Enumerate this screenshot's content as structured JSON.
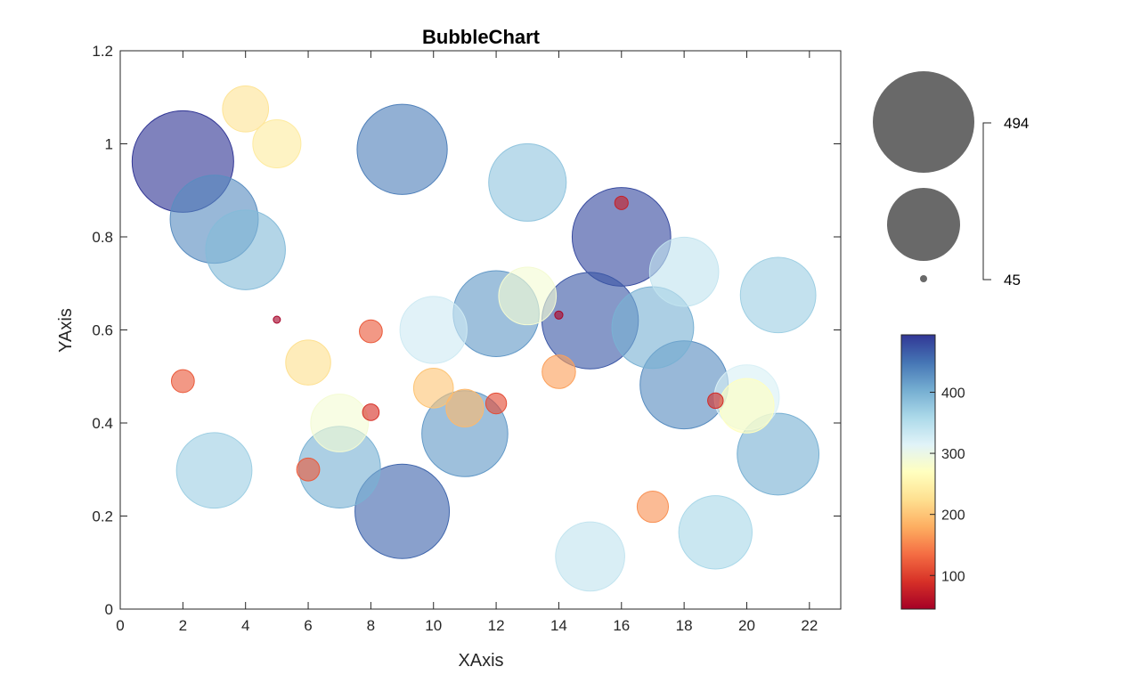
{
  "chart_data": {
    "type": "scatter",
    "title": "BubbleChart",
    "xlabel": "XAxis",
    "ylabel": "YAxis",
    "xlim": [
      0,
      23
    ],
    "ylim": [
      0,
      1.2
    ],
    "xticks": [
      0,
      2,
      4,
      6,
      8,
      10,
      12,
      14,
      16,
      18,
      20,
      22
    ],
    "yticks": [
      0,
      0.2,
      0.4,
      0.6,
      0.8,
      1,
      1.2
    ],
    "ytick_labels": [
      "0",
      "0.2",
      "0.4",
      "0.6",
      "0.8",
      "1",
      "1.2"
    ],
    "grid": false,
    "size_legend": {
      "max_label": "494",
      "min_label": "45",
      "max": 494,
      "min": 45
    },
    "colorbar": {
      "ticks": [
        100,
        200,
        300,
        400
      ],
      "min": 45,
      "max": 494,
      "colormap": "RdYlBu"
    },
    "points": [
      {
        "x": 2,
        "y": 0.962,
        "v": 494
      },
      {
        "x": 3,
        "y": 0.838,
        "v": 430
      },
      {
        "x": 4,
        "y": 0.772,
        "v": 390
      },
      {
        "x": 4,
        "y": 1.075,
        "v": 230
      },
      {
        "x": 5,
        "y": 1.0,
        "v": 240
      },
      {
        "x": 9,
        "y": 0.988,
        "v": 440
      },
      {
        "x": 13,
        "y": 0.917,
        "v": 380
      },
      {
        "x": 16,
        "y": 0.8,
        "v": 480
      },
      {
        "x": 16,
        "y": 0.873,
        "v": 75
      },
      {
        "x": 18,
        "y": 0.725,
        "v": 340
      },
      {
        "x": 21,
        "y": 0.675,
        "v": 370
      },
      {
        "x": 17,
        "y": 0.605,
        "v": 400
      },
      {
        "x": 15,
        "y": 0.62,
        "v": 470
      },
      {
        "x": 12,
        "y": 0.635,
        "v": 420
      },
      {
        "x": 13,
        "y": 0.673,
        "v": 285
      },
      {
        "x": 14,
        "y": 0.632,
        "v": 50
      },
      {
        "x": 10,
        "y": 0.6,
        "v": 330
      },
      {
        "x": 5,
        "y": 0.622,
        "v": 45
      },
      {
        "x": 8,
        "y": 0.597,
        "v": 120
      },
      {
        "x": 6,
        "y": 0.53,
        "v": 225
      },
      {
        "x": 2,
        "y": 0.49,
        "v": 120
      },
      {
        "x": 10,
        "y": 0.475,
        "v": 200
      },
      {
        "x": 11,
        "y": 0.432,
        "v": 190
      },
      {
        "x": 12,
        "y": 0.442,
        "v": 110
      },
      {
        "x": 14,
        "y": 0.51,
        "v": 170
      },
      {
        "x": 18,
        "y": 0.482,
        "v": 430
      },
      {
        "x": 20,
        "y": 0.455,
        "v": 320
      },
      {
        "x": 20,
        "y": 0.437,
        "v": 270
      },
      {
        "x": 19,
        "y": 0.448,
        "v": 85
      },
      {
        "x": 8,
        "y": 0.423,
        "v": 90
      },
      {
        "x": 7,
        "y": 0.4,
        "v": 285
      },
      {
        "x": 11,
        "y": 0.377,
        "v": 420
      },
      {
        "x": 7,
        "y": 0.305,
        "v": 400
      },
      {
        "x": 6,
        "y": 0.3,
        "v": 120
      },
      {
        "x": 3,
        "y": 0.298,
        "v": 370
      },
      {
        "x": 21,
        "y": 0.333,
        "v": 400
      },
      {
        "x": 9,
        "y": 0.21,
        "v": 460
      },
      {
        "x": 17,
        "y": 0.22,
        "v": 160
      },
      {
        "x": 19,
        "y": 0.165,
        "v": 360
      },
      {
        "x": 15,
        "y": 0.113,
        "v": 340
      }
    ]
  }
}
